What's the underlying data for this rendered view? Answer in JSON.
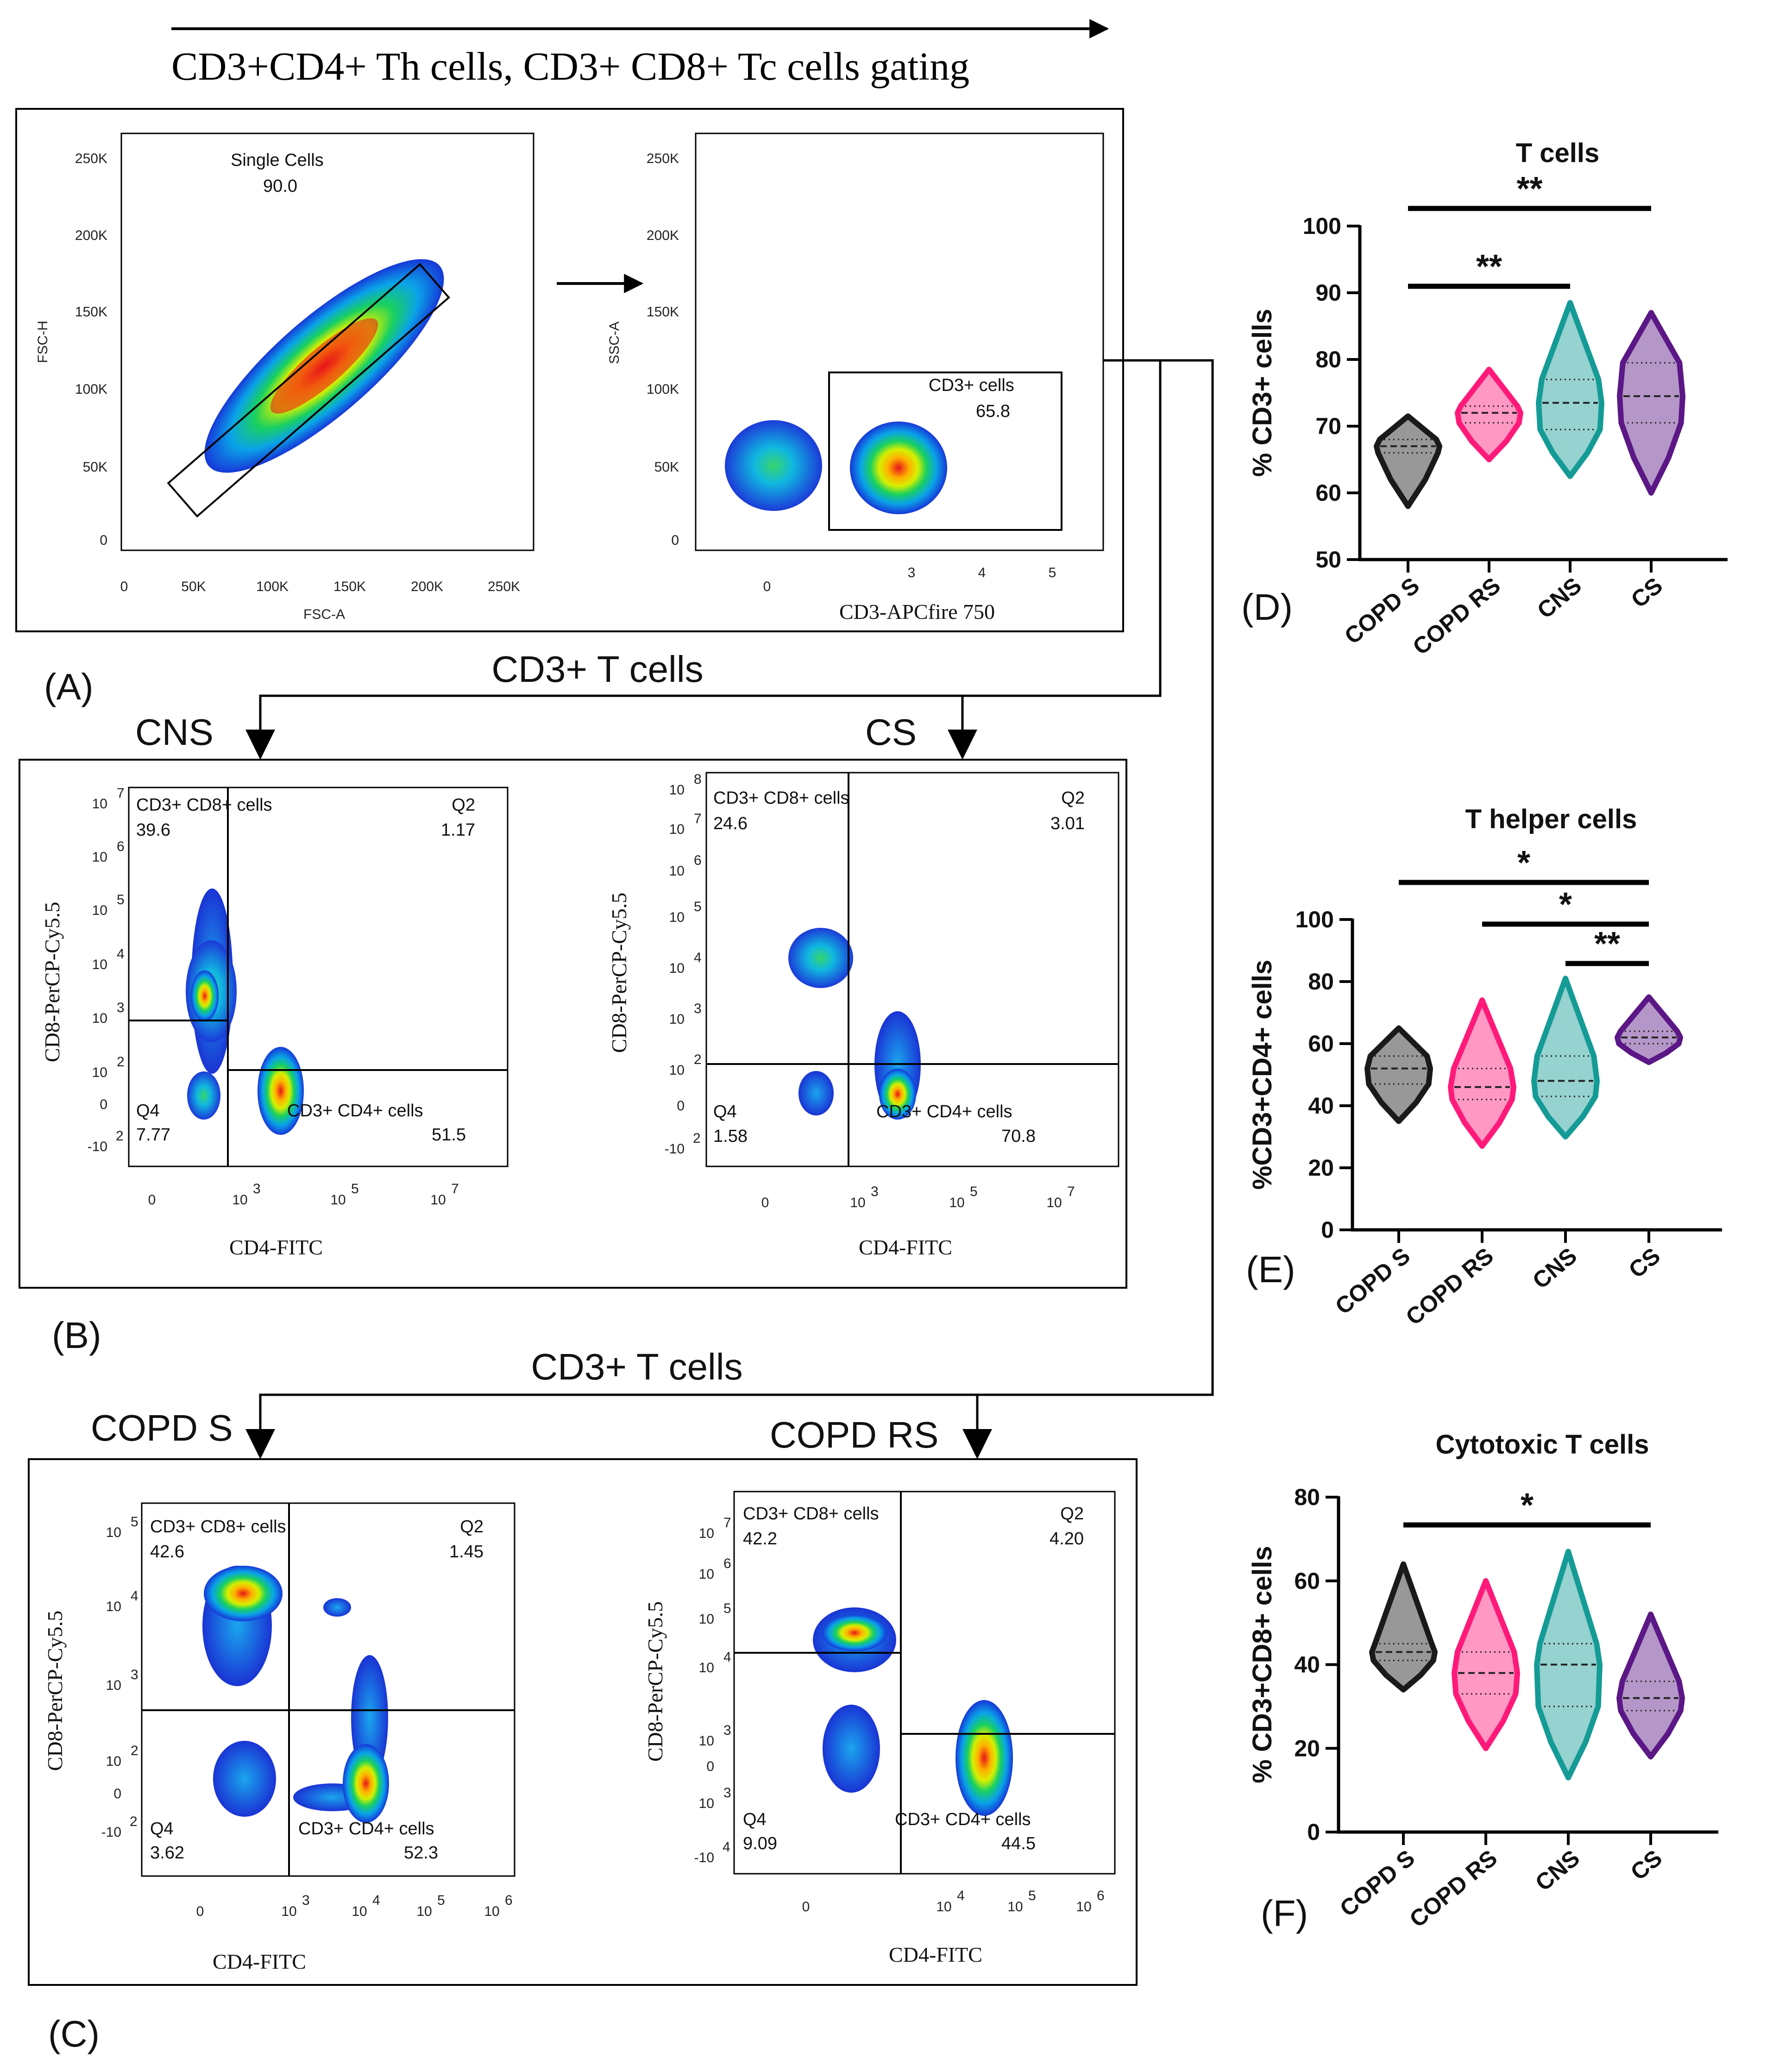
{
  "header": {
    "gating_title": "CD3+CD4+ Th cells, CD3+ CD8+ Tc cells gating"
  },
  "panel_labels": {
    "A": "(A)",
    "B": "(B)",
    "C": "(C)",
    "D": "(D)",
    "E": "(E)",
    "F": "(F)"
  },
  "flow_labels": {
    "cd3_t_cells_1": "CD3+ T cells",
    "cd3_t_cells_2": "CD3+ T cells",
    "cns": "CNS",
    "cs": "CS",
    "copd_s": "COPD S",
    "copd_rs": "COPD RS"
  },
  "plot_single": {
    "gate_name": "Single Cells",
    "gate_value": "90.0",
    "xlabel": "FSC-A",
    "ylabel": "FSC-H",
    "xticks": [
      "0",
      "50K",
      "100K",
      "150K",
      "200K",
      "250K"
    ],
    "yticks": [
      "0",
      "50K",
      "100K",
      "150K",
      "200K",
      "250K"
    ]
  },
  "plot_cd3": {
    "gate_name": "CD3+ cells",
    "gate_value": "65.8",
    "xlabel": "CD3-APCfire 750",
    "ylabel": "SSC-A",
    "xticks": [
      "0",
      "3",
      "4",
      "5"
    ],
    "yticks": [
      "0",
      "50K",
      "100K",
      "150K",
      "200K",
      "250K"
    ]
  },
  "quad_plots": {
    "cns": {
      "xlabel": "CD4-FITC",
      "ylabel": "CD8-PerCP-Cy5.5",
      "q1_name": "CD3+ CD8+ cells",
      "q1_value": "39.6",
      "q2_name": "Q2",
      "q2_value": "1.17",
      "q3_name": "CD3+ CD4+ cells",
      "q3_value": "51.5",
      "q4_name": "Q4",
      "q4_value": "7.77",
      "xticks": [
        "0",
        "10",
        "10",
        "10"
      ],
      "xexp": [
        "",
        "3",
        "5",
        "7"
      ],
      "yticks": [
        "-10",
        "0",
        "10",
        "10",
        "10",
        "10",
        "10",
        "10"
      ],
      "yexp": [
        "2",
        "",
        "2",
        "3",
        "4",
        "5",
        "6",
        "7"
      ]
    },
    "cs": {
      "xlabel": "CD4-FITC",
      "ylabel": "CD8-PerCP-Cy5.5",
      "q1_name": "CD3+ CD8+ cells",
      "q1_value": "24.6",
      "q2_name": "Q2",
      "q2_value": "3.01",
      "q3_name": "CD3+ CD4+ cells",
      "q3_value": "70.8",
      "q4_name": "Q4",
      "q4_value": "1.58",
      "xticks": [
        "0",
        "10",
        "10",
        "10"
      ],
      "xexp": [
        "",
        "3",
        "5",
        "7"
      ],
      "yticks": [
        "-10",
        "0",
        "10",
        "10",
        "10",
        "10",
        "10",
        "10",
        "10"
      ],
      "yexp": [
        "2",
        "",
        "2",
        "3",
        "4",
        "5",
        "6",
        "7",
        "8"
      ]
    },
    "copd_s": {
      "xlabel": "CD4-FITC",
      "ylabel": "CD8-PerCP-Cy5.5",
      "q1_name": "CD3+ CD8+ cells",
      "q1_value": "42.6",
      "q2_name": "Q2",
      "q2_value": "1.45",
      "q3_name": "CD3+ CD4+ cells",
      "q3_value": "52.3",
      "q4_name": "Q4",
      "q4_value": "3.62",
      "xticks": [
        "0",
        "10",
        "10",
        "10",
        "10"
      ],
      "xexp": [
        "",
        "3",
        "4",
        "5",
        "6"
      ],
      "yticks": [
        "-10",
        "0",
        "10",
        "10",
        "10",
        "10"
      ],
      "yexp": [
        "2",
        "",
        "2",
        "3",
        "4",
        "5"
      ]
    },
    "copd_rs": {
      "xlabel": "CD4-FITC",
      "ylabel": "CD8-PerCP-Cy5.5",
      "q1_name": "CD3+ CD8+ cells",
      "q1_value": "42.2",
      "q2_name": "Q2",
      "q2_value": "4.20",
      "q3_name": "CD3+ CD4+ cells",
      "q3_value": "44.5",
      "q4_name": "Q4",
      "q4_value": "9.09",
      "xticks": [
        "0",
        "10",
        "10",
        "10"
      ],
      "xexp": [
        "",
        "4",
        "5",
        "6"
      ],
      "yticks": [
        "-10",
        "0",
        "10",
        "10",
        "10",
        "10",
        "10",
        "10",
        "10"
      ],
      "yexp": [
        "4",
        "",
        "3",
        "3",
        "4",
        "5",
        "6",
        "7"
      ]
    }
  },
  "chart_data": [
    {
      "type": "violin",
      "title": "T cells",
      "ylabel": "% CD3+ cells",
      "categories": [
        "COPD S",
        "COPD RS",
        "CNS",
        "CS"
      ],
      "ylim": [
        50,
        100
      ],
      "yticks": [
        "50",
        "60",
        "70",
        "80",
        "90",
        "100"
      ],
      "series": [
        {
          "name": "COPD S",
          "color": "#1a1a1a",
          "min": 58,
          "q1": 66,
          "median": 67,
          "q3": 68,
          "max": 71.5
        },
        {
          "name": "COPD RS",
          "color": "#ff1a7a",
          "min": 65,
          "q1": 70.5,
          "median": 72,
          "q3": 73,
          "max": 78.5
        },
        {
          "name": "CNS",
          "color": "#159b96",
          "min": 62.5,
          "q1": 69.5,
          "median": 73.5,
          "q3": 77,
          "max": 88.5
        },
        {
          "name": "CS",
          "color": "#5b1785",
          "min": 60,
          "q1": 70.5,
          "median": 74.5,
          "q3": 79.5,
          "max": 87
        }
      ],
      "significance": [
        {
          "from": "COPD S",
          "to": "CS",
          "label": "**"
        },
        {
          "from": "COPD S",
          "to": "CNS",
          "label": "**"
        }
      ]
    },
    {
      "type": "violin",
      "title": "T helper cells",
      "ylabel": "%CD3+CD4+ cells",
      "categories": [
        "COPD S",
        "COPD RS",
        "CNS",
        "CS"
      ],
      "ylim": [
        0,
        100
      ],
      "yticks": [
        "0",
        "20",
        "40",
        "60",
        "80",
        "100"
      ],
      "series": [
        {
          "name": "COPD S",
          "color": "#1a1a1a",
          "min": 35,
          "q1": 47,
          "median": 52,
          "q3": 56,
          "max": 65
        },
        {
          "name": "COPD RS",
          "color": "#ff1a7a",
          "min": 27,
          "q1": 42,
          "median": 46,
          "q3": 52,
          "max": 74
        },
        {
          "name": "CNS",
          "color": "#159b96",
          "min": 30,
          "q1": 43,
          "median": 48,
          "q3": 56,
          "max": 81
        },
        {
          "name": "CS",
          "color": "#5b1785",
          "min": 54,
          "q1": 60,
          "median": 62,
          "q3": 64,
          "max": 75
        }
      ],
      "significance": [
        {
          "from": "COPD S",
          "to": "CS",
          "label": "*"
        },
        {
          "from": "COPD RS",
          "to": "CS",
          "label": "*"
        },
        {
          "from": "CNS",
          "to": "CS",
          "label": "**"
        }
      ]
    },
    {
      "type": "violin",
      "title": "Cytotoxic T cells",
      "ylabel": "% CD3+CD8+ cells",
      "categories": [
        "COPD S",
        "COPD RS",
        "CNS",
        "CS"
      ],
      "ylim": [
        0,
        80
      ],
      "yticks": [
        "0",
        "20",
        "40",
        "60",
        "80"
      ],
      "series": [
        {
          "name": "COPD S",
          "color": "#1a1a1a",
          "min": 34,
          "q1": 41,
          "median": 43,
          "q3": 45,
          "max": 64
        },
        {
          "name": "COPD RS",
          "color": "#ff1a7a",
          "min": 20,
          "q1": 33,
          "median": 38,
          "q3": 43,
          "max": 60
        },
        {
          "name": "CNS",
          "color": "#159b96",
          "min": 13,
          "q1": 30,
          "median": 40,
          "q3": 45,
          "max": 67
        },
        {
          "name": "CS",
          "color": "#5b1785",
          "min": 18,
          "q1": 29,
          "median": 32,
          "q3": 36,
          "max": 52
        }
      ],
      "significance": [
        {
          "from": "COPD S",
          "to": "CS",
          "label": "*"
        }
      ]
    }
  ]
}
